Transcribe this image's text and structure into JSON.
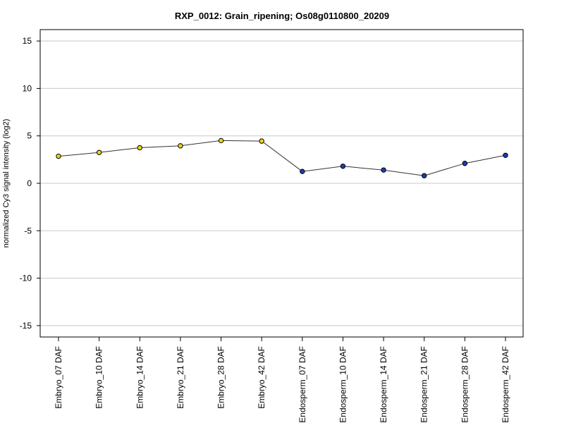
{
  "chart_data": {
    "type": "line",
    "title": "RXP_0012: Grain_ripening; Os08g0110800_20209",
    "xlabel": "",
    "ylabel": "normalized Cy3 signal intensity (log2)",
    "ylim": [
      -16.2,
      16.2
    ],
    "yticks": [
      15,
      10,
      5,
      0,
      -5,
      -10,
      -15
    ],
    "grid": true,
    "legend": "none",
    "categories": [
      "Embryo_07 DAF",
      "Embryo_10 DAF",
      "Embryo_14 DAF",
      "Embryo_21 DAF",
      "Embryo_28 DAF",
      "Embryo_42 DAF",
      "Endosperm_07 DAF",
      "Endosperm_10 DAF",
      "Endosperm_14 DAF",
      "Endosperm_21 DAF",
      "Endosperm_28 DAF",
      "Endosperm_42 DAF"
    ],
    "values": [
      2.85,
      3.25,
      3.75,
      3.95,
      4.5,
      4.45,
      1.25,
      1.8,
      1.4,
      0.8,
      2.1,
      2.95
    ],
    "point_colors": [
      "#f2d21b",
      "#f2d21b",
      "#f2d21b",
      "#f2d21b",
      "#f2d21b",
      "#f2d21b",
      "#1c3fb0",
      "#1c3fb0",
      "#1c3fb0",
      "#1c3fb0",
      "#1c3fb0",
      "#1c3fb0"
    ],
    "line_color": "#333333",
    "grid_color": "#c8c8c8"
  }
}
